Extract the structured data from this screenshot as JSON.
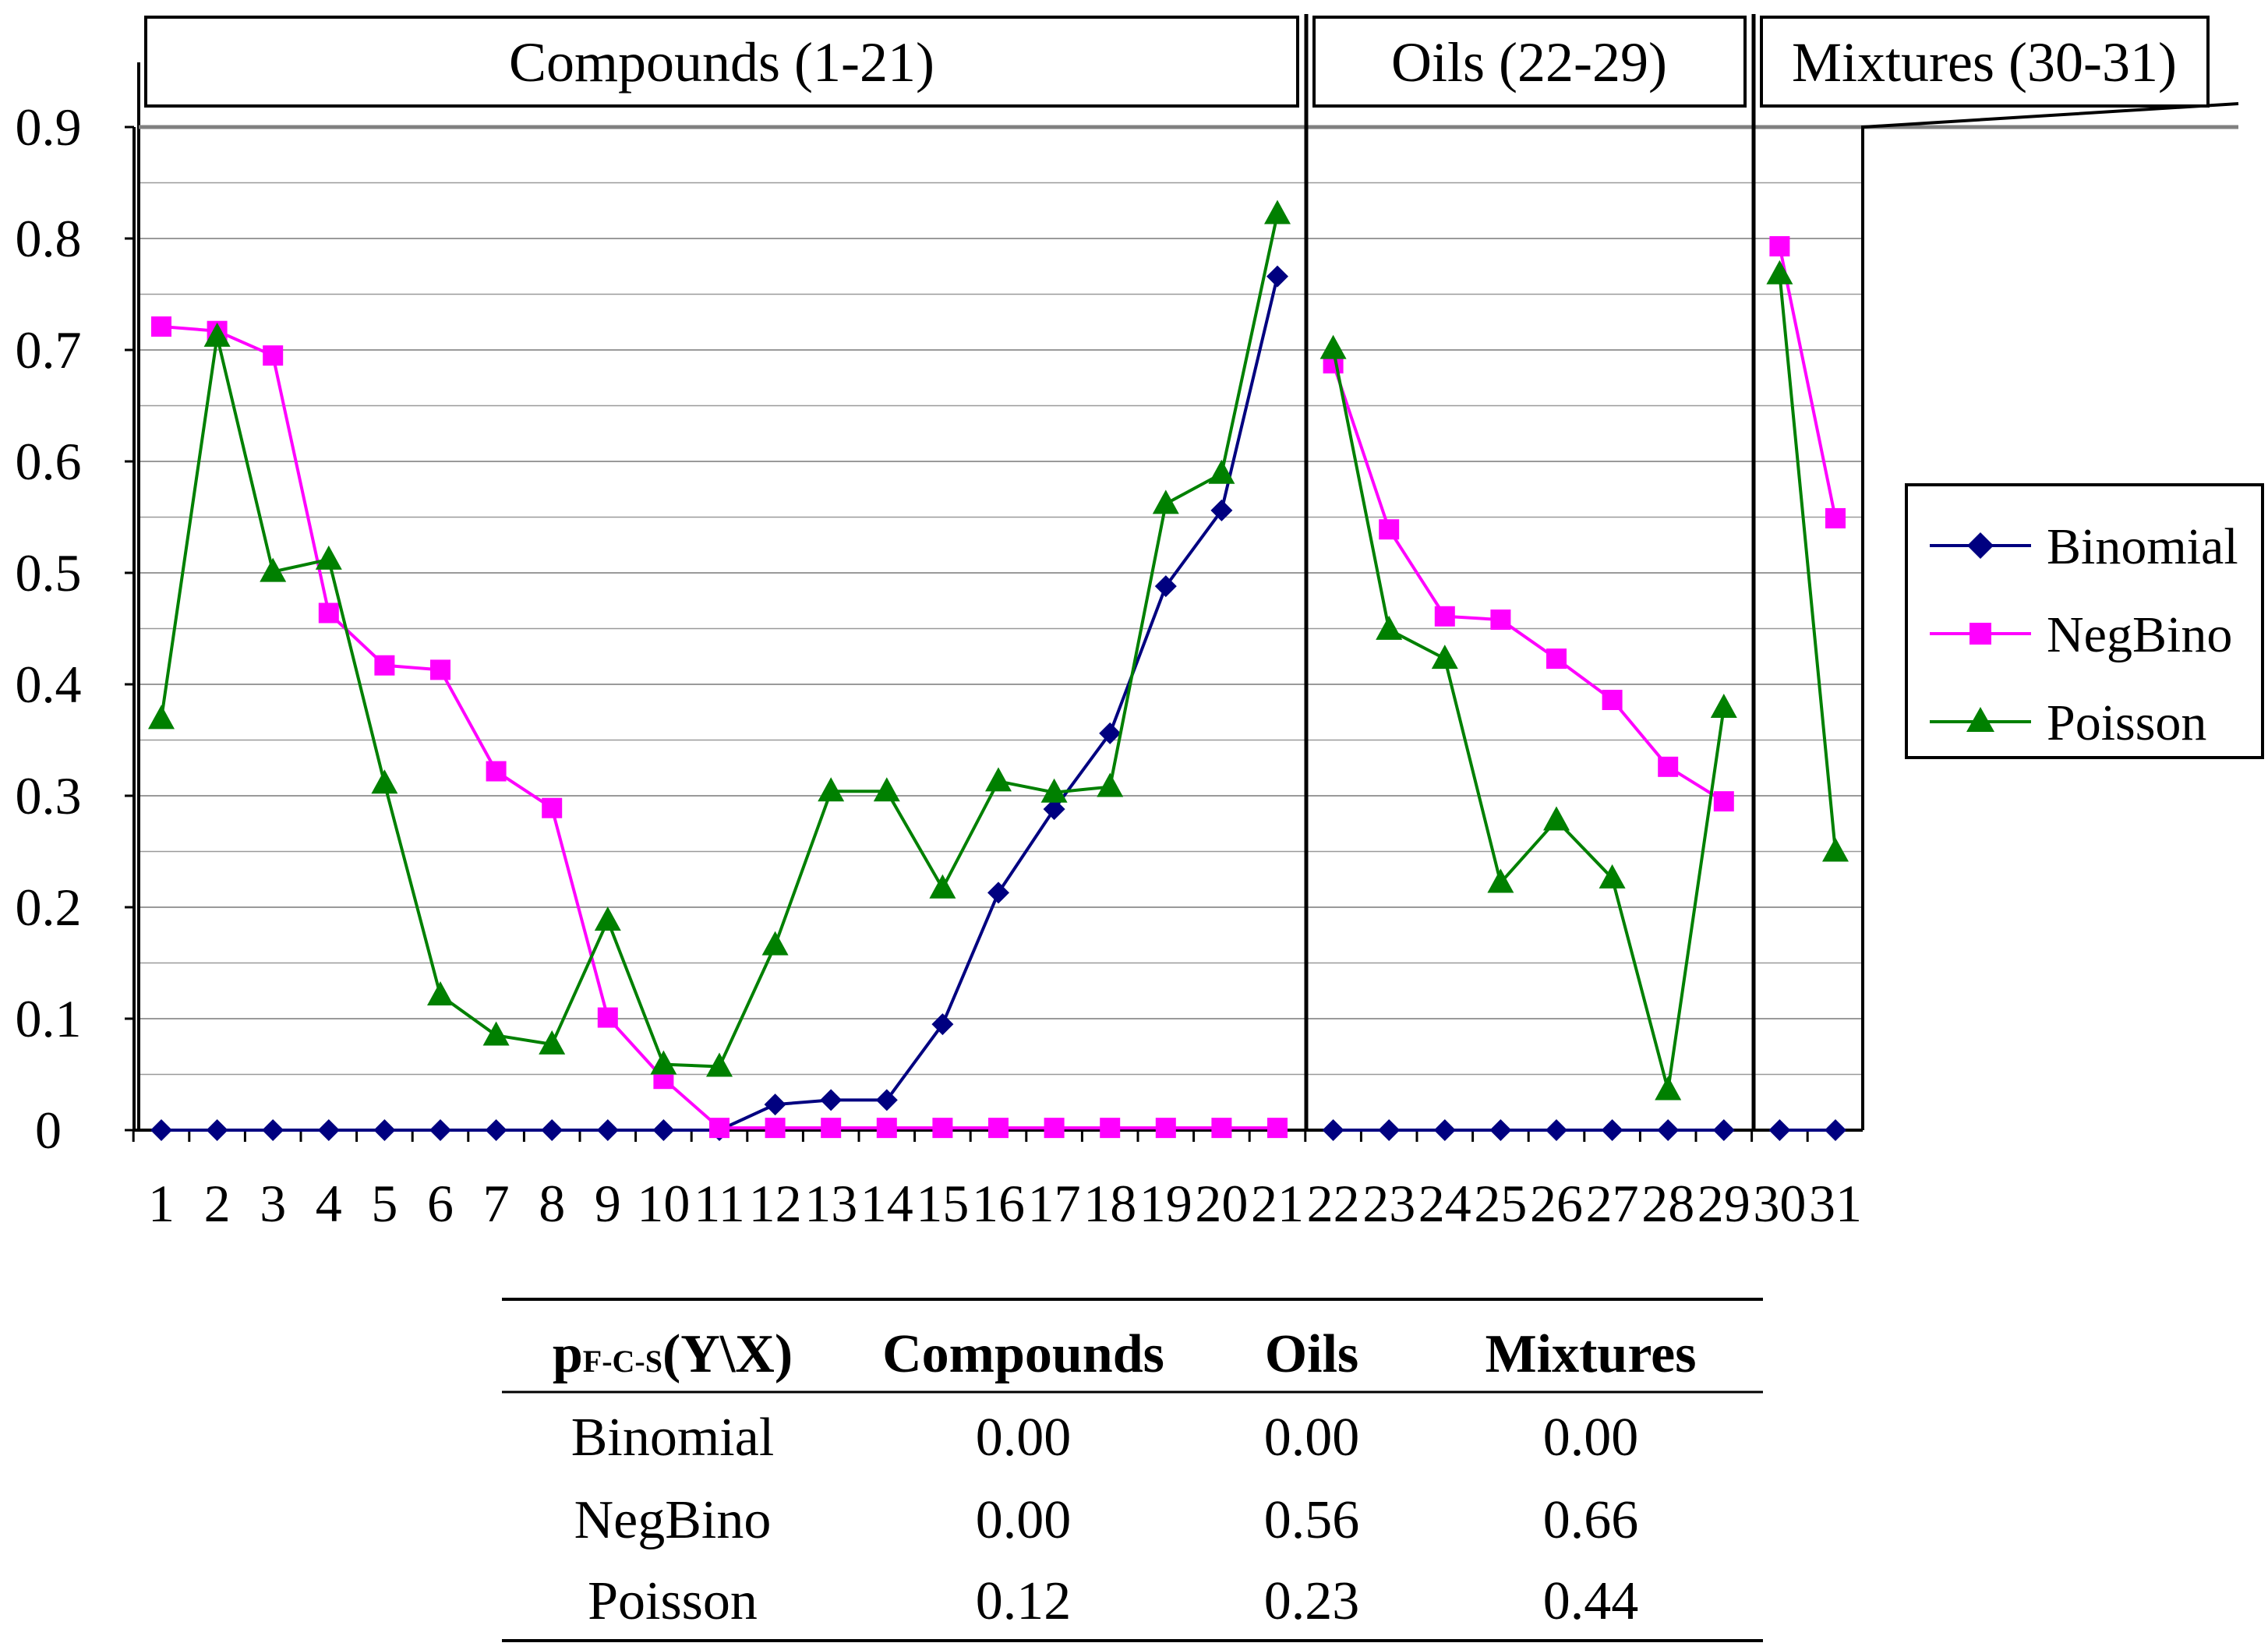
{
  "chart_data": {
    "type": "line",
    "xlabel": "",
    "ylabel": "",
    "ylim": [
      0,
      0.9
    ],
    "yticks": [
      "0",
      "0.1",
      "0.2",
      "0.3",
      "0.4",
      "0.5",
      "0.6",
      "0.7",
      "0.8",
      "0.9"
    ],
    "x": [
      "1",
      "2",
      "3",
      "4",
      "5",
      "6",
      "7",
      "8",
      "9",
      "10",
      "11",
      "12",
      "13",
      "14",
      "15",
      "16",
      "17",
      "18",
      "19",
      "20",
      "21",
      "22",
      "23",
      "24",
      "25",
      "26",
      "27",
      "28",
      "29",
      "30",
      "31"
    ],
    "groups": [
      {
        "label": "Compounds (1-21)",
        "from": 1,
        "to": 21
      },
      {
        "label": "Oils (22-29)",
        "from": 22,
        "to": 29
      },
      {
        "label": "Mixtures (30-31)",
        "from": 30,
        "to": 31
      }
    ],
    "series": [
      {
        "name": "Binomial",
        "color": "#000080",
        "marker": "diamond",
        "values": [
          0,
          0,
          0,
          0,
          0,
          0,
          0,
          0,
          0,
          0,
          0,
          0.023,
          0.027,
          0.027,
          0.095,
          0.213,
          0.288,
          0.356,
          0.488,
          0.556,
          0.766,
          0,
          0,
          0,
          0,
          0,
          0,
          0,
          0,
          0,
          0
        ]
      },
      {
        "name": "NegBino",
        "color": "#ff00ff",
        "marker": "square",
        "values": [
          0.721,
          0.717,
          0.695,
          0.464,
          0.417,
          0.413,
          0.322,
          0.289,
          0.101,
          0.046,
          0.002,
          0.002,
          0.002,
          0.002,
          0.002,
          0.002,
          0.002,
          0.002,
          0.002,
          0.002,
          0.002,
          0.688,
          0.539,
          0.461,
          0.458,
          0.423,
          0.386,
          0.326,
          0.295,
          0.793,
          0.549
        ]
      },
      {
        "name": "Poisson",
        "color": "#008000",
        "marker": "triangle",
        "values": [
          0.369,
          0.712,
          0.501,
          0.512,
          0.311,
          0.121,
          0.085,
          0.077,
          0.188,
          0.059,
          0.057,
          0.166,
          0.304,
          0.304,
          0.217,
          0.313,
          0.303,
          0.308,
          0.562,
          0.589,
          0.822,
          0.701,
          0.449,
          0.423,
          0.222,
          0.278,
          0.226,
          0.036,
          0.379,
          0.768,
          0.25
        ]
      }
    ],
    "breaks_after": [
      21,
      29
    ],
    "legend_position": "right"
  },
  "table": {
    "header": [
      "p",
      "F-C-S",
      "(Y\\X)",
      "Compounds",
      "Oils",
      "Mixtures"
    ],
    "rows": [
      {
        "label": "Binomial",
        "compounds": "0.00",
        "oils": "0.00",
        "mixtures": "0.00"
      },
      {
        "label": "NegBino",
        "compounds": "0.00",
        "oils": "0.56",
        "mixtures": "0.66"
      },
      {
        "label": "Poisson",
        "compounds": "0.12",
        "oils": "0.23",
        "mixtures": "0.44"
      }
    ]
  }
}
